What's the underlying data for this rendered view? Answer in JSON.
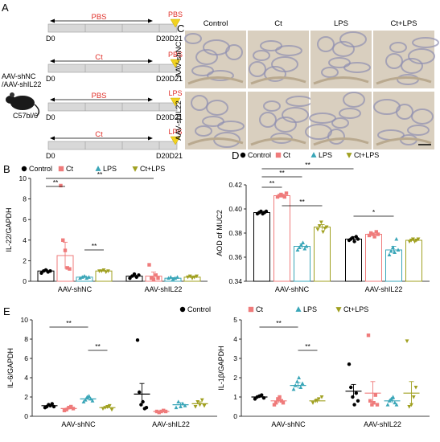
{
  "colors": {
    "control": "#000000",
    "ct": "#ef7b7b",
    "lps": "#3aa6b8",
    "ctlps": "#a0a020",
    "red_text": "#e0302a",
    "arrow": "#f1d21f",
    "bar_fill": "#d8d8d8",
    "tissue_bg": "#d9cfbf",
    "tissue_stain": "#8f8fb0"
  },
  "panelA": {
    "label": "A",
    "mice_label_1": "AAV-shNC",
    "mice_label_2": "/AAV-shIL22",
    "strain": "C57bl/6",
    "day_start": "D0",
    "day_end": "D20D21",
    "rows": [
      {
        "middle": "PBS",
        "end": "PBS"
      },
      {
        "middle": "Ct",
        "end": "PBS"
      },
      {
        "middle": "PBS",
        "end": "LPS"
      },
      {
        "middle": "Ct",
        "end": "LPS"
      }
    ]
  },
  "panelC": {
    "label": "C",
    "columns": [
      "Control",
      "Ct",
      "LPS",
      "Ct+LPS"
    ],
    "rows": [
      "AAV-shNC",
      "AAV-shIL22"
    ]
  },
  "legend": {
    "items": [
      "Control",
      "Ct",
      "LPS",
      "Ct+LPS"
    ]
  },
  "chart_data": [
    {
      "panel": "B",
      "type": "bar",
      "ylabel": "IL-22/GAPDH",
      "ylim": [
        0,
        10
      ],
      "yticks": [
        0,
        2,
        4,
        6,
        8,
        10
      ],
      "groups": [
        "AAV-shNC",
        "AAV-shIL22"
      ],
      "series": [
        {
          "name": "Control",
          "values": [
            1.0,
            0.5
          ],
          "err": [
            0.1,
            0.1
          ],
          "points": [
            [
              0.8,
              1.0,
              1.1,
              0.9,
              1.0
            ],
            [
              0.3,
              0.5,
              0.7,
              0.4,
              0.6
            ]
          ]
        },
        {
          "name": "Ct",
          "values": [
            2.5,
            0.5
          ],
          "err": [
            1.3,
            0.4
          ],
          "points": [
            [
              9.3,
              4.0,
              3.0,
              1.3,
              1.2
            ],
            [
              1.6,
              0.3,
              0.2,
              0.6,
              0.3
            ]
          ]
        },
        {
          "name": "LPS",
          "values": [
            0.4,
            0.3
          ],
          "err": [
            0.1,
            0.05
          ],
          "points": [
            [
              0.3,
              0.4,
              0.5,
              0.3,
              0.4
            ],
            [
              0.3,
              0.4,
              0.2,
              0.3,
              0.4
            ]
          ]
        },
        {
          "name": "Ct+LPS",
          "values": [
            1.0,
            0.4
          ],
          "err": [
            0.05,
            0.1
          ],
          "points": [
            [
              1.0,
              1.0,
              1.1,
              0.9,
              1.0
            ],
            [
              0.4,
              0.5,
              0.3,
              0.4,
              0.5
            ]
          ]
        }
      ],
      "significance": [
        "**",
        "**",
        "**"
      ]
    },
    {
      "panel": "D",
      "type": "bar",
      "ylabel": "AOD of MUC2",
      "ylim": [
        0.34,
        0.42
      ],
      "yticks": [
        0.34,
        0.36,
        0.38,
        0.4,
        0.42
      ],
      "groups": [
        "AAV-shNC",
        "AAV-shIL22"
      ],
      "series": [
        {
          "name": "Control",
          "values": [
            0.397,
            0.375
          ],
          "err": [
            0.001,
            0.002
          ],
          "points": [
            [
              0.396,
              0.397,
              0.398,
              0.396,
              0.397,
              0.398
            ],
            [
              0.374,
              0.375,
              0.376,
              0.373,
              0.377,
              0.375
            ]
          ]
        },
        {
          "name": "Ct",
          "values": [
            0.411,
            0.379
          ],
          "err": [
            0.001,
            0.001
          ],
          "points": [
            [
              0.41,
              0.411,
              0.412,
              0.411,
              0.41,
              0.413
            ],
            [
              0.378,
              0.38,
              0.379,
              0.377,
              0.381,
              0.379
            ]
          ]
        },
        {
          "name": "LPS",
          "values": [
            0.369,
            0.366
          ],
          "err": [
            0.002,
            0.003
          ],
          "points": [
            [
              0.366,
              0.368,
              0.37,
              0.372,
              0.367,
              0.369
            ],
            [
              0.362,
              0.365,
              0.368,
              0.364,
              0.375,
              0.366
            ]
          ]
        },
        {
          "name": "Ct+LPS",
          "values": [
            0.385,
            0.374
          ],
          "err": [
            0.002,
            0.001
          ],
          "points": [
            [
              0.383,
              0.386,
              0.389,
              0.381,
              0.384,
              0.385
            ],
            [
              0.373,
              0.374,
              0.375,
              0.373,
              0.374,
              0.375
            ]
          ]
        }
      ],
      "significance": [
        "**",
        "**",
        "**",
        "**",
        "*"
      ]
    },
    {
      "panel": "E-left",
      "type": "bar",
      "ylabel": "IL-6/GAPDH",
      "ylim": [
        0,
        10
      ],
      "yticks": [
        0,
        2,
        4,
        6,
        8,
        10
      ],
      "groups": [
        "AAV-shNC",
        "AAV-shIL22"
      ],
      "series": [
        {
          "name": "Control",
          "values": [
            1.1,
            2.3
          ],
          "err": [
            0.1,
            1.1
          ],
          "points": [
            [
              0.9,
              1.0,
              1.2,
              1.1,
              1.3,
              1.0
            ],
            [
              7.9,
              2.5,
              1.2,
              1.5,
              0.8,
              0.9
            ]
          ]
        },
        {
          "name": "Ct",
          "values": [
            0.8,
            0.5
          ],
          "err": [
            0.1,
            0.05
          ],
          "points": [
            [
              0.6,
              0.7,
              0.9,
              1.0,
              0.8
            ],
            [
              0.5,
              0.4,
              0.5,
              0.6,
              0.5
            ]
          ]
        },
        {
          "name": "LPS",
          "values": [
            1.8,
            1.2
          ],
          "err": [
            0.15,
            0.2
          ],
          "points": [
            [
              1.5,
              1.7,
              2.0,
              2.1,
              1.8,
              1.6
            ],
            [
              0.9,
              1.5,
              1.0,
              1.3,
              1.1
            ]
          ]
        },
        {
          "name": "Ct+LPS",
          "values": [
            0.9,
            1.3
          ],
          "err": [
            0.1,
            0.2
          ],
          "points": [
            [
              0.8,
              0.9,
              1.0,
              1.1,
              0.7
            ],
            [
              1.0,
              1.5,
              1.2,
              1.7,
              1.1
            ]
          ]
        }
      ],
      "significance": [
        "**",
        "**"
      ]
    },
    {
      "panel": "E-right",
      "type": "bar",
      "ylabel": "IL-1β/GAPDH",
      "ylim": [
        0,
        5
      ],
      "yticks": [
        0,
        1,
        2,
        3,
        4,
        5
      ],
      "groups": [
        "AAV-shNC",
        "AAV-shIL22"
      ],
      "series": [
        {
          "name": "Control",
          "values": [
            1.0,
            1.3
          ],
          "err": [
            0.05,
            0.35
          ],
          "points": [
            [
              0.9,
              1.0,
              1.05,
              1.1,
              0.95
            ],
            [
              2.7,
              1.5,
              1.0,
              0.6,
              1.2,
              0.8
            ]
          ]
        },
        {
          "name": "Ct",
          "values": [
            0.8,
            1.2
          ],
          "err": [
            0.1,
            0.6
          ],
          "points": [
            [
              0.6,
              0.7,
              0.9,
              1.0,
              0.8,
              0.7
            ],
            [
              4.2,
              0.8,
              0.6,
              0.7,
              1.1,
              0.6
            ]
          ]
        },
        {
          "name": "LPS",
          "values": [
            1.6,
            0.8
          ],
          "err": [
            0.15,
            0.1
          ],
          "points": [
            [
              1.4,
              1.6,
              1.8,
              2.0,
              1.5,
              1.7
            ],
            [
              0.6,
              0.8,
              0.9,
              1.0,
              0.7,
              0.6
            ]
          ]
        },
        {
          "name": "Ct+LPS",
          "values": [
            0.8,
            1.2
          ],
          "err": [
            0.1,
            0.6
          ],
          "points": [
            [
              0.7,
              0.8,
              0.9,
              1.0
            ],
            [
              3.9,
              0.5,
              0.6,
              1.0,
              1.5
            ]
          ]
        }
      ],
      "significance": [
        "**",
        "**"
      ]
    }
  ],
  "panelB": {
    "label": "B"
  },
  "panelD": {
    "label": "D"
  },
  "panelE": {
    "label": "E"
  }
}
